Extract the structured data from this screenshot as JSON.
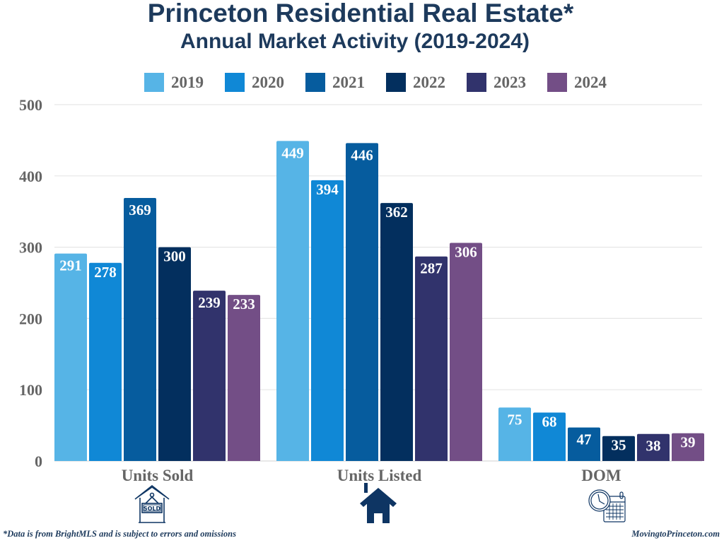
{
  "chart_data": {
    "type": "bar",
    "title": "Princeton Residential Real Estate*",
    "subtitle": "Annual Market Activity (2019-2024)",
    "categories": [
      "Units Sold",
      "Units Listed",
      "DOM"
    ],
    "series": [
      {
        "name": "2019",
        "color": "#56b4e6",
        "values": [
          291,
          449,
          75
        ]
      },
      {
        "name": "2020",
        "color": "#1088d6",
        "values": [
          278,
          394,
          68
        ]
      },
      {
        "name": "2021",
        "color": "#065c9e",
        "values": [
          369,
          446,
          47
        ]
      },
      {
        "name": "2022",
        "color": "#032f5e",
        "values": [
          300,
          362,
          35
        ]
      },
      {
        "name": "2023",
        "color": "#31336c",
        "values": [
          239,
          287,
          38
        ]
      },
      {
        "name": "2024",
        "color": "#734e86",
        "values": [
          233,
          306,
          39
        ]
      }
    ],
    "xlabel": "",
    "ylabel": "",
    "ylim": [
      0,
      500
    ],
    "yticks": [
      0,
      100,
      200,
      300,
      400,
      500
    ],
    "grid": true,
    "legend_position": "top-center",
    "data_labels": true
  },
  "icons": [
    "sold-sign-house-icon",
    "house-icon",
    "clock-calendar-icon"
  ],
  "footnote": "*Data is from BrightMLS and is subject to errors and omissions",
  "site": "MovingtoPrinceton.com",
  "colors": {
    "title": "#1d3a5c",
    "axis_text": "#666666",
    "icon": "#0e3563"
  }
}
